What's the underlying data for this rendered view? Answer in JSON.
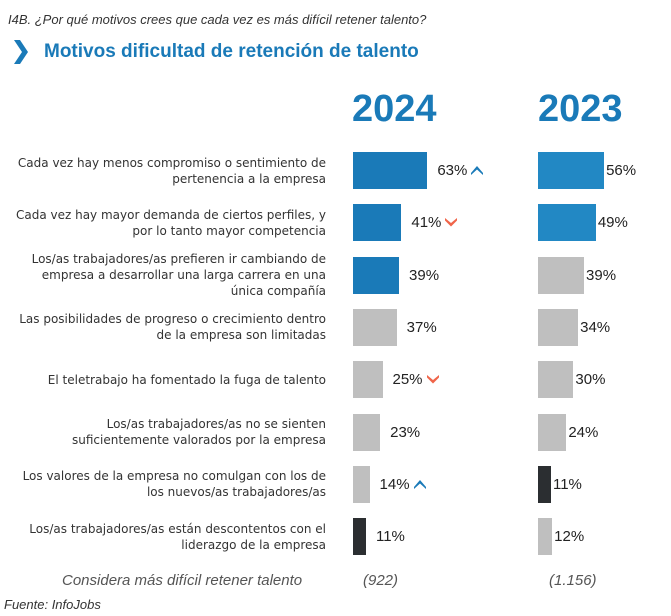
{
  "question": "I4B. ¿Por qué motivos crees que cada vez es más difícil retener talento?",
  "title": "Motivos dificultad de retención de talento",
  "footer": {
    "base_label": "Considera más difícil retener talento",
    "source": "Fuente: InfoJobs"
  },
  "colors": {
    "blue": "#1a7ab8",
    "blue_2023": "#2288c4",
    "gray": "#bfbfbf",
    "dark": "#2b2e31",
    "up": "#1a7ab8",
    "down": "#f0654a"
  },
  "chart_data": {
    "type": "bar",
    "orientation": "horizontal",
    "title": "Motivos dificultad de retención de talento",
    "xlabel": "",
    "ylabel": "",
    "xlim": [
      0,
      100
    ],
    "grid": false,
    "categories": [
      "Cada vez hay menos compromiso o sentimiento de pertenencia a la empresa",
      "Cada vez hay mayor demanda de ciertos perfiles, y por lo tanto mayor competencia",
      "Los/as trabajadores/as prefieren ir cambiando de empresa a desarrollar una larga carrera en una única compañía",
      "Las posibilidades de progreso o crecimiento dentro de la empresa son limitadas",
      "El teletrabajo ha fomentado la fuga de talento",
      "Los/as trabajadores/as no se sienten suficientemente valorados por la empresa",
      "Los valores de la empresa no comulgan con los de los nuevos/as trabajadores/as",
      "Los/as trabajadores/as están descontentos con el liderazgo de la empresa"
    ],
    "label_lines": [
      [
        "Cada vez hay menos compromiso o sentimiento de",
        "pertenencia a la empresa"
      ],
      [
        "Cada vez hay mayor demanda de ciertos perfiles, y",
        "por lo tanto mayor competencia"
      ],
      [
        "Los/as trabajadores/as prefieren ir cambiando de",
        "empresa a desarrollar una larga carrera en una",
        "única compañía"
      ],
      [
        "Las posibilidades de progreso o crecimiento dentro",
        "de la empresa son limitadas"
      ],
      [
        "El teletrabajo ha fomentado la fuga de talento"
      ],
      [
        "Los/as trabajadores/as no se sienten",
        "suficientemente valorados por la empresa"
      ],
      [
        "Los valores de la empresa no comulgan con los de",
        "los nuevos/as trabajadores/as"
      ],
      [
        "Los/as trabajadores/as están descontentos con el",
        "liderazgo de la empresa"
      ]
    ],
    "series": [
      {
        "name": "2024",
        "base": "(922)",
        "values": [
          63,
          41,
          39,
          37,
          25,
          23,
          14,
          11
        ],
        "labels": [
          "63%",
          "41%",
          "39%",
          "37%",
          "25%",
          "23%",
          "14%",
          "11%"
        ],
        "bar_colors": [
          "blue",
          "blue",
          "blue",
          "gray",
          "gray",
          "gray",
          "gray",
          "dark"
        ],
        "trends": [
          "up",
          "down",
          null,
          null,
          "down",
          null,
          "up",
          null
        ]
      },
      {
        "name": "2023",
        "base": "(1.156)",
        "values": [
          56,
          49,
          39,
          34,
          30,
          24,
          11,
          12
        ],
        "labels": [
          "56%",
          "49%",
          "39%",
          "34%",
          "30%",
          "24%",
          "11%",
          "12%"
        ],
        "bar_colors": [
          "blue_2023",
          "blue_2023",
          "gray",
          "gray",
          "gray",
          "gray",
          "dark",
          "gray"
        ],
        "trends": [
          null,
          null,
          null,
          null,
          null,
          null,
          null,
          null
        ]
      }
    ]
  }
}
